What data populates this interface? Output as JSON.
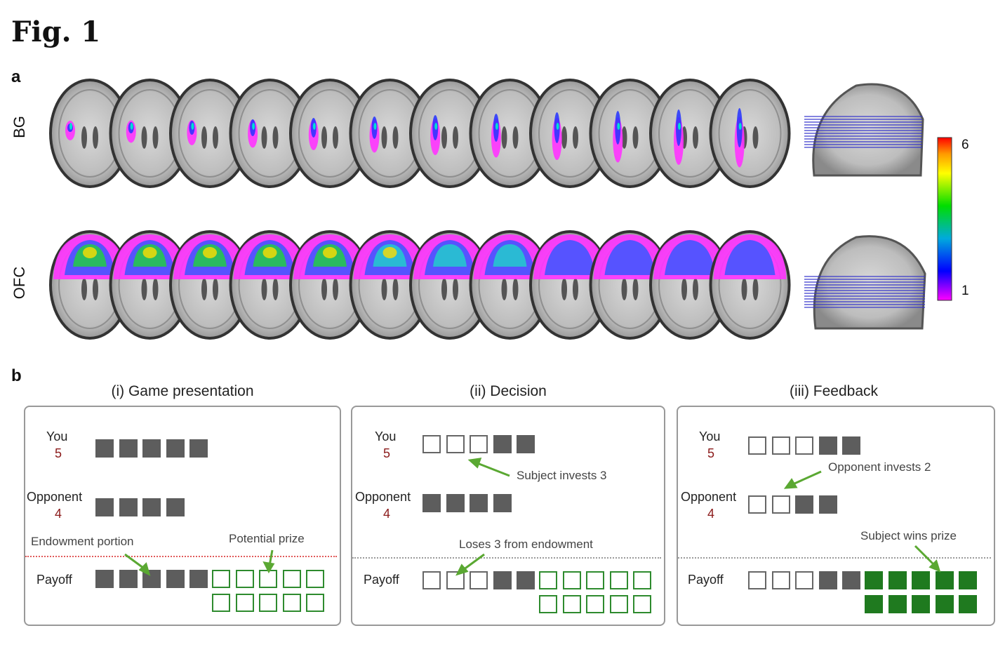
{
  "figure": {
    "title": "Fig. 1",
    "panel_a_letter": "a",
    "panel_b_letter": "b"
  },
  "panel_a": {
    "rows": [
      {
        "label": "BG",
        "slices": 12
      },
      {
        "label": "OFC",
        "slices": 12
      }
    ],
    "colorbar": {
      "max_label": "6",
      "min_label": "1",
      "colors": [
        "#ff0000",
        "#ff9900",
        "#ffff00",
        "#00dd00",
        "#00aadd",
        "#0000ff",
        "#ff00ff"
      ]
    }
  },
  "panel_b": {
    "panels": [
      {
        "title": "(i) Game presentation",
        "you_label": "You",
        "you_value": "5",
        "opp_label": "Opponent",
        "opp_value": "4",
        "payoff_label": "Payoff",
        "annotations": [
          "Endowment portion",
          "Potential prize"
        ]
      },
      {
        "title": "(ii) Decision",
        "you_label": "You",
        "you_value": "5",
        "opp_label": "Opponent",
        "opp_value": "4",
        "payoff_label": "Payoff",
        "annotations": [
          "Subject invests 3",
          "Loses 3 from endowment"
        ]
      },
      {
        "title": "(iii) Feedback",
        "you_label": "You",
        "you_value": "5",
        "opp_label": "Opponent",
        "opp_value": "4",
        "payoff_label": "Payoff",
        "annotations": [
          "Opponent invests 2",
          "Subject wins prize"
        ]
      }
    ]
  }
}
